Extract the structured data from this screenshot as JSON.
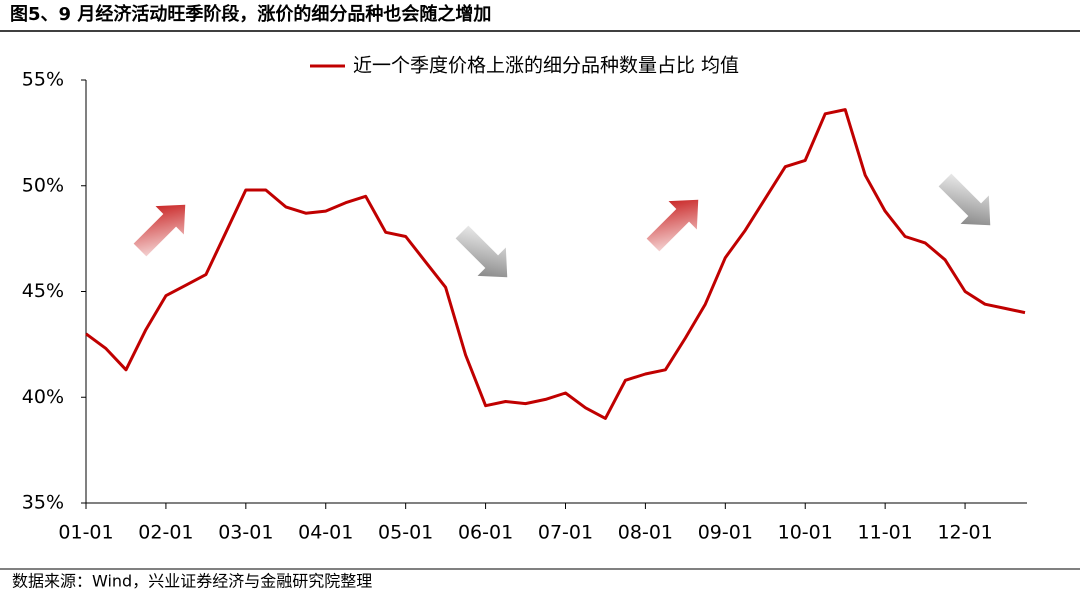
{
  "chart_data": {
    "type": "line",
    "title": "图5、9 月经济活动旺季阶段，涨价的细分品种也会随之增加",
    "source": "数据来源：Wind，兴业证券经济与金融研究院整理",
    "categories": [
      "01-01",
      null,
      null,
      null,
      "02-01",
      null,
      null,
      null,
      "03-01",
      null,
      null,
      null,
      "04-01",
      null,
      null,
      null,
      "05-01",
      null,
      null,
      null,
      "06-01",
      null,
      null,
      null,
      "07-01",
      null,
      null,
      null,
      "08-01",
      null,
      null,
      null,
      "09-01",
      null,
      null,
      null,
      "10-01",
      null,
      null,
      null,
      "11-01",
      null,
      null,
      null,
      "12-01",
      null,
      null,
      null
    ],
    "series": [
      {
        "name": "近一个季度价格上涨的细分品种数量占比 均值",
        "color": "#c00000",
        "values": [
          43.0,
          42.3,
          41.3,
          43.2,
          44.8,
          45.3,
          45.8,
          47.8,
          49.8,
          49.8,
          49.0,
          48.7,
          48.8,
          49.2,
          49.5,
          47.8,
          47.6,
          46.4,
          45.2,
          42.0,
          39.6,
          39.8,
          39.7,
          39.9,
          40.2,
          39.5,
          39.0,
          40.8,
          41.1,
          41.3,
          42.8,
          44.4,
          46.6,
          47.9,
          49.4,
          50.9,
          51.2,
          53.4,
          53.6,
          50.5,
          48.8,
          47.6,
          47.3,
          46.5,
          45.0,
          44.4,
          44.2,
          44.0
        ]
      }
    ],
    "ylim": [
      35,
      55
    ],
    "yticks": [
      {
        "value": 35,
        "label": "35%"
      },
      {
        "value": 40,
        "label": "40%"
      },
      {
        "value": 45,
        "label": "45%"
      },
      {
        "value": 50,
        "label": "50%"
      },
      {
        "value": 55,
        "label": "55%"
      }
    ],
    "legend": "top"
  }
}
